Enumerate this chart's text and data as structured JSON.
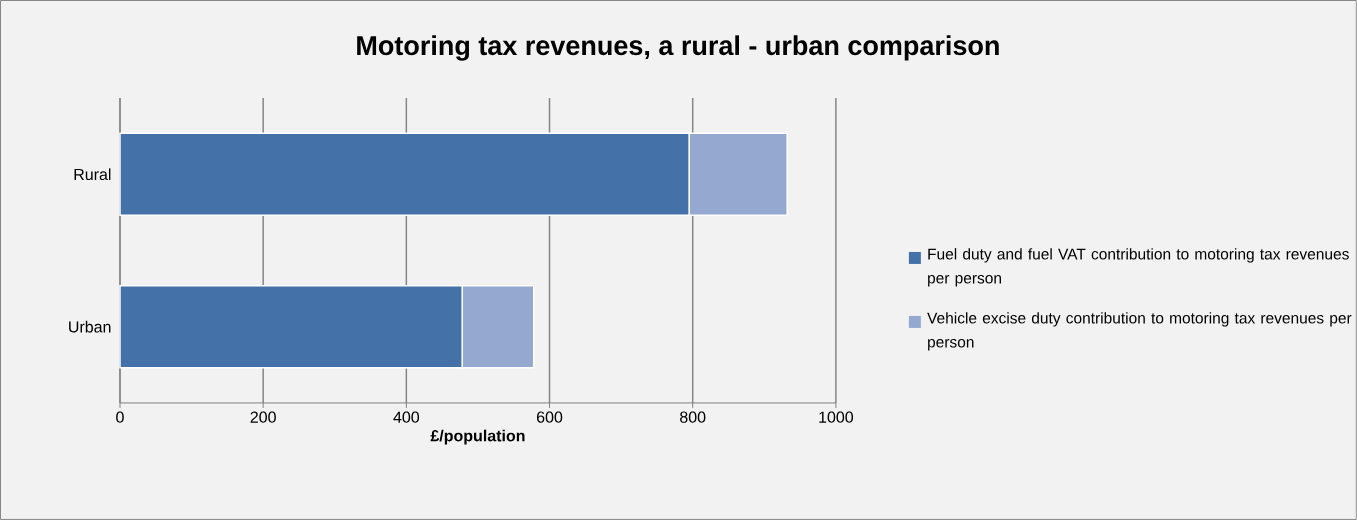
{
  "chart_data": {
    "type": "bar",
    "orientation": "horizontal",
    "stacked": true,
    "title": "Motoring tax revenues, a rural - urban comparison",
    "xlabel": "£/population",
    "categories": [
      "Rural",
      "Urban"
    ],
    "series": [
      {
        "name": "Fuel duty and fuel VAT contribution to motoring tax revenues per person",
        "color": "#4472a8",
        "values": [
          795,
          478
        ]
      },
      {
        "name": "Vehicle excise duty contribution to motoring tax revenues per person",
        "color": "#95a9d0",
        "values": [
          137,
          100
        ]
      }
    ],
    "xlim": [
      0,
      1000
    ],
    "xticks": [
      0,
      200,
      400,
      600,
      800,
      1000
    ],
    "grid": "x",
    "legend": "right"
  }
}
